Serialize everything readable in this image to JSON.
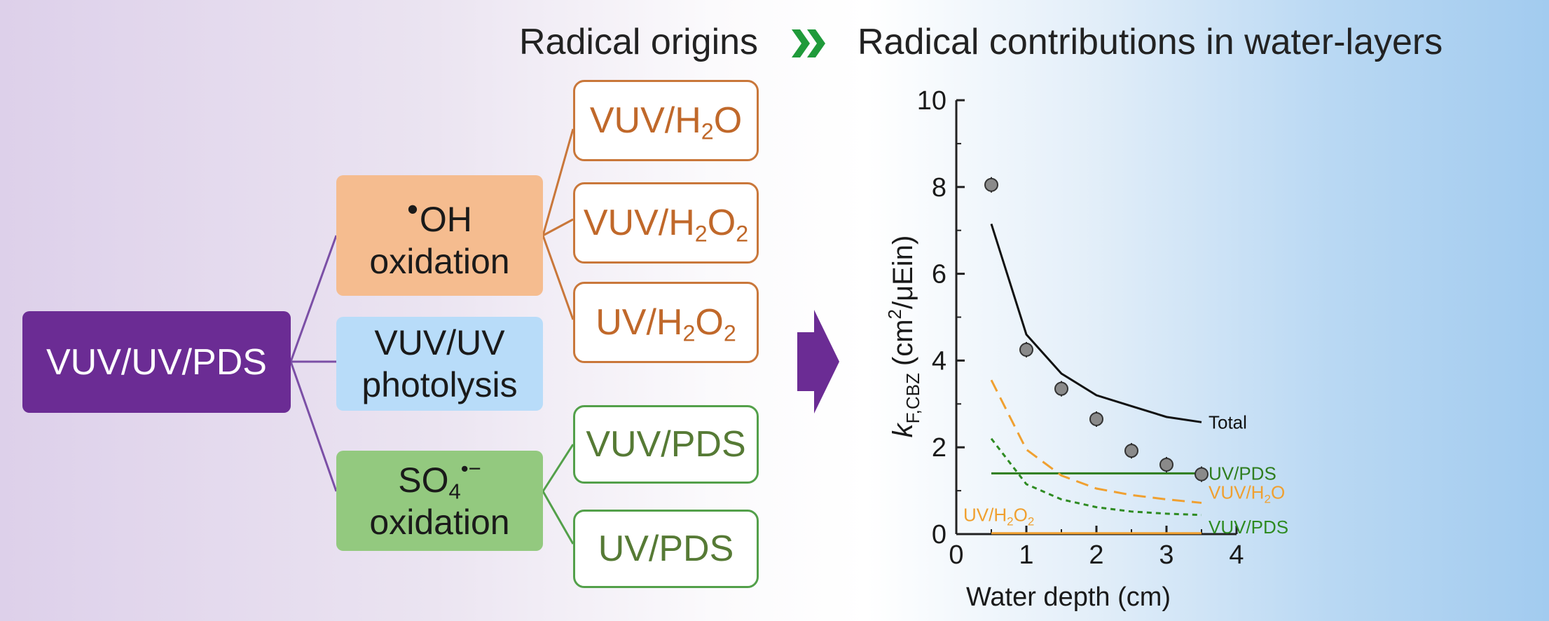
{
  "headings": {
    "left": "Radical origins",
    "right": "Radical contributions in water-layers",
    "chevron_icon": "double-chevron-right-icon",
    "arrow_icon": "block-arrow-right-icon"
  },
  "diagram": {
    "root": "VUV/UV/PDS",
    "categories": {
      "oh": {
        "radical": "OH",
        "line2": "oxidation"
      },
      "photolysis": {
        "line1": "VUV/UV",
        "line2": "photolysis"
      },
      "so4": {
        "radical": "SO",
        "sub": "4",
        "sup": "•−",
        "line2": "oxidation"
      }
    },
    "oh_sources": [
      {
        "base": "VUV/H",
        "s1": "2",
        "mid": "O",
        "s2": ""
      },
      {
        "base": "VUV/H",
        "s1": "2",
        "mid": "O",
        "s2": "2"
      },
      {
        "base": "UV/H",
        "s1": "2",
        "mid": "O",
        "s2": "2"
      }
    ],
    "so4_sources": [
      "VUV/PDS",
      "UV/PDS"
    ],
    "colors": {
      "root": "#6b2c94",
      "oh_fill": "#f5bc8f",
      "photolysis_fill": "#b8dcf9",
      "so4_fill": "#93c97f",
      "purple_line": "#7b4fa6",
      "orange_line": "#c9773a",
      "green_line": "#53a04a",
      "chevron": "#1f9a3a"
    }
  },
  "chart_data": {
    "type": "line",
    "ylabel_symbol": "k",
    "ylabel_sub": "F,CBZ",
    "ylabel_unit_a": "(cm",
    "ylabel_unit_sup": "2",
    "ylabel_unit_b": "/μEin)",
    "xlabel": "Water depth (cm)",
    "xlim": [
      0,
      4
    ],
    "ylim": [
      0,
      10
    ],
    "xticks": [
      0,
      1,
      2,
      3,
      4
    ],
    "yticks": [
      0,
      2,
      4,
      6,
      8,
      10
    ],
    "grid": false,
    "points": {
      "x": [
        0.5,
        1.0,
        1.5,
        2.0,
        2.5,
        3.0,
        3.5
      ],
      "y": [
        8.05,
        4.25,
        3.35,
        2.65,
        1.92,
        1.6,
        1.38
      ]
    },
    "series": [
      {
        "name": "Total",
        "color": "#111111",
        "dash": "solid",
        "x": [
          0.5,
          1.0,
          1.5,
          2.0,
          2.5,
          3.0,
          3.5
        ],
        "y": [
          7.15,
          4.6,
          3.7,
          3.2,
          2.95,
          2.7,
          2.58
        ]
      },
      {
        "name": "UV/PDS",
        "color": "#2e7d1e",
        "dash": "solid",
        "x": [
          0.5,
          3.5
        ],
        "y": [
          1.4,
          1.4
        ]
      },
      {
        "name": "VUV/H2O",
        "color": "#f0a030",
        "dash": "long",
        "x": [
          0.5,
          1.0,
          1.5,
          2.0,
          2.5,
          3.0,
          3.5
        ],
        "y": [
          3.55,
          1.95,
          1.35,
          1.05,
          0.9,
          0.8,
          0.72
        ]
      },
      {
        "name": "VUV/PDS",
        "color": "#2e8b22",
        "dash": "short",
        "x": [
          0.5,
          1.0,
          1.5,
          2.0,
          2.5,
          3.0,
          3.5
        ],
        "y": [
          2.2,
          1.15,
          0.8,
          0.62,
          0.52,
          0.47,
          0.44
        ]
      },
      {
        "name": "UV/H2O2",
        "color": "#f0a030",
        "dash": "solid",
        "x": [
          0.5,
          3.5
        ],
        "y": [
          0.02,
          0.02
        ]
      }
    ],
    "labels": {
      "total": "Total",
      "uvpds": "UV/PDS",
      "vuvh2o": {
        "base": "VUV/H",
        "s1": "2",
        "mid": "O"
      },
      "vuvpds": "VUV/PDS",
      "uvh2o2": {
        "base": "UV/H",
        "s1": "2",
        "mid": "O",
        "s2": "2"
      }
    }
  }
}
